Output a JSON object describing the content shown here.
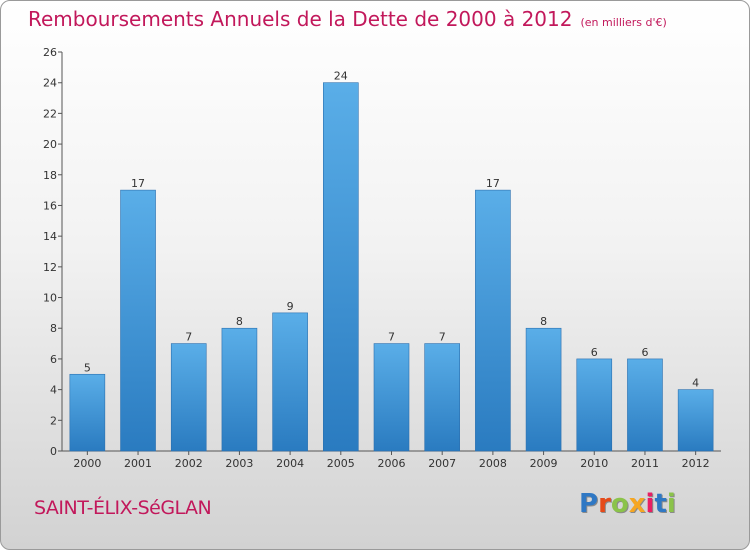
{
  "title": "Remboursements Annuels de la Dette de 2000 à 2012",
  "unit_note": "(en milliers d'€)",
  "commune": "SAINT-ÉLIX-SéGLAN",
  "logo": {
    "text": "Proxiti",
    "letter_colors": [
      "#2f78c4",
      "#e64a19",
      "#8bc34a",
      "#f5a623",
      "#e91e63",
      "#2f78c4",
      "#8bc34a"
    ]
  },
  "colors": {
    "bar": "#3f95d8",
    "title": "#c2185b"
  },
  "chart_data": {
    "type": "bar",
    "title": "Remboursements Annuels de la Dette de 2000 à 2012",
    "xlabel": "",
    "ylabel": "",
    "categories": [
      "2000",
      "2001",
      "2002",
      "2003",
      "2004",
      "2005",
      "2006",
      "2007",
      "2008",
      "2009",
      "2010",
      "2011",
      "2012"
    ],
    "values": [
      5,
      17,
      7,
      8,
      9,
      24,
      7,
      7,
      17,
      8,
      6,
      6,
      4
    ],
    "ylim": [
      0,
      26
    ],
    "yticks": [
      0,
      2,
      4,
      6,
      8,
      10,
      12,
      14,
      16,
      18,
      20,
      22,
      24,
      26
    ],
    "grid": false,
    "legend": "none"
  }
}
